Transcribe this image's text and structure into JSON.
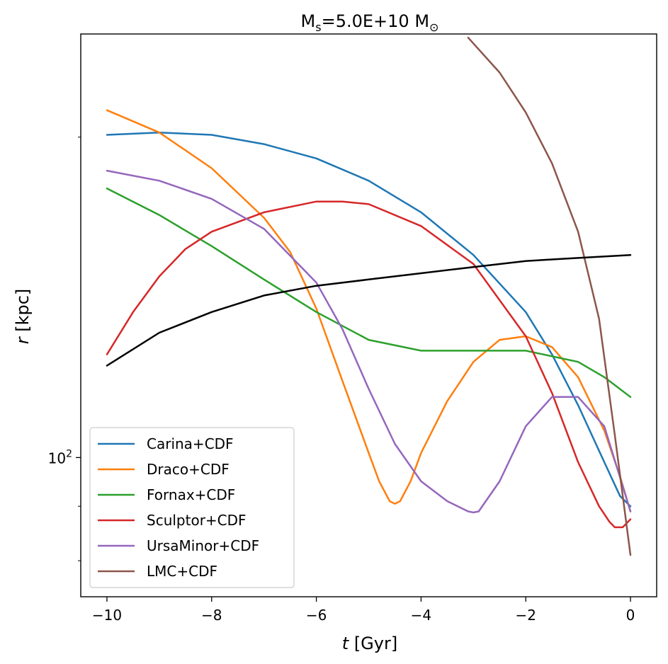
{
  "chart_data": {
    "type": "line",
    "title": "M",
    "title_sub": "s",
    "title_mid": "=5.0E+10 M",
    "title_sub2": "⊙",
    "xlabel_italic": "t",
    "xlabel_rest": " [Gyr]",
    "ylabel_italic": "r",
    "ylabel_rest": " [kpc]",
    "xlim": [
      -10.5,
      0.5
    ],
    "ylim": [
      74,
      250
    ],
    "y_scale": "log",
    "xticks": [
      -10,
      -8,
      -6,
      -4,
      -2,
      0
    ],
    "xtick_labels": [
      "−10",
      "−8",
      "−6",
      "−4",
      "−2",
      "0"
    ],
    "ytick_major": [
      100
    ],
    "ytick_major_base": "10",
    "ytick_major_exp": "2",
    "ytick_minor": [
      80,
      90,
      200
    ],
    "legend_position": "lower-left",
    "series": [
      {
        "name": "Carina+CDF",
        "color": "#1f77b4",
        "x": [
          -10,
          -9,
          -8,
          -7,
          -6,
          -5,
          -4,
          -3,
          -2,
          -1.5,
          -1,
          -0.5,
          -0.2,
          0
        ],
        "y": [
          201,
          202,
          201,
          197,
          191,
          182,
          170,
          155,
          137,
          125,
          112,
          99,
          92,
          90
        ]
      },
      {
        "name": "Draco+CDF",
        "color": "#ff7f0e",
        "x": [
          -10,
          -9,
          -8,
          -7,
          -6.5,
          -6,
          -5.5,
          -5,
          -4.8,
          -4.6,
          -4.5,
          -4.4,
          -4.2,
          -4,
          -3.5,
          -3,
          -2.5,
          -2,
          -1.5,
          -1,
          -0.5,
          -0.2,
          0
        ],
        "y": [
          212,
          202,
          187,
          168,
          156,
          138,
          118,
          101,
          95,
          91,
          90.5,
          91,
          95,
          101,
          113,
          123,
          129,
          130,
          127,
          119,
          106,
          96,
          89
        ]
      },
      {
        "name": "Fornax+CDF",
        "color": "#2ca02c",
        "x": [
          -10,
          -9,
          -8,
          -7,
          -6,
          -5,
          -4,
          -3,
          -2,
          -1,
          -0.5,
          0
        ],
        "y": [
          179,
          169,
          158,
          147,
          137,
          129,
          126,
          126,
          126,
          123,
          119,
          114
        ]
      },
      {
        "name": "Sculptor+CDF",
        "color": "#d62728",
        "x": [
          -10,
          -9.5,
          -9,
          -8.5,
          -8,
          -7,
          -6,
          -5.5,
          -5,
          -4,
          -3,
          -2,
          -1.5,
          -1,
          -0.6,
          -0.4,
          -0.3,
          -0.15,
          0
        ],
        "y": [
          125,
          137,
          148,
          157,
          163,
          170,
          174,
          174,
          173,
          165,
          152,
          130,
          115,
          99,
          90,
          87,
          86,
          86,
          87.5
        ]
      },
      {
        "name": "UrsaMinor+CDF",
        "color": "#9467bd",
        "x": [
          -10,
          -9,
          -8,
          -7,
          -6,
          -5.5,
          -5,
          -4.5,
          -4,
          -3.5,
          -3.1,
          -3,
          -2.9,
          -2.5,
          -2,
          -1.5,
          -1,
          -0.5,
          0
        ],
        "y": [
          186,
          182,
          175,
          164,
          146,
          132,
          116,
          103,
          95,
          91,
          89,
          88.8,
          89,
          95,
          107,
          114,
          114,
          107,
          89
        ]
      },
      {
        "name": "LMC+CDF",
        "color": "#8c564b",
        "x": [
          -3.1,
          -2.5,
          -2,
          -1.5,
          -1,
          -0.6,
          -0.3,
          0
        ],
        "y": [
          248,
          230,
          211,
          189,
          163,
          135,
          105,
          81
        ]
      },
      {
        "name": "",
        "color": "#000000",
        "x": [
          -10,
          -9,
          -8,
          -7,
          -6,
          -5,
          -4,
          -3,
          -2,
          -1,
          0
        ],
        "y": [
          122,
          131,
          137,
          142,
          145,
          147,
          149,
          151,
          153,
          154,
          155
        ]
      }
    ]
  }
}
